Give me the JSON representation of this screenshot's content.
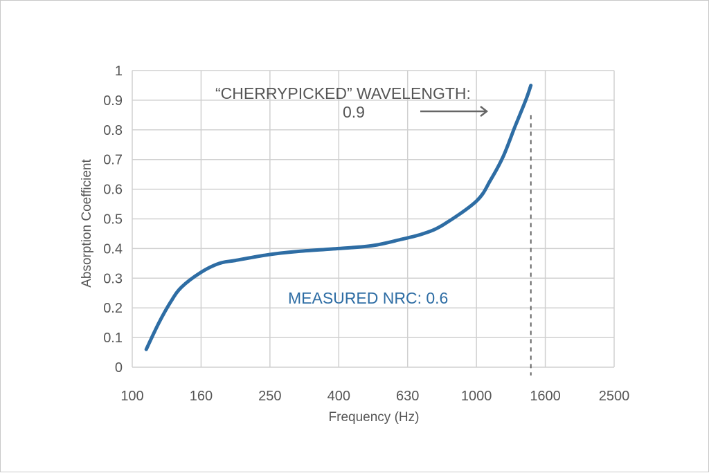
{
  "chart_data": {
    "type": "line",
    "xlabel": "Frequency (Hz)",
    "ylabel": "Absorption Coefficient",
    "categories": [
      "100",
      "160",
      "250",
      "400",
      "630",
      "1000",
      "1600",
      "2500"
    ],
    "yticks": [
      "0",
      "0.1",
      "0.2",
      "0.3",
      "0.4",
      "0.5",
      "0.6",
      "0.7",
      "0.8",
      "0.9",
      "1"
    ],
    "ylim": [
      0,
      1
    ],
    "grid": true,
    "series": [
      {
        "color": "#2e6da4",
        "x": [
          110,
          120,
          130,
          140,
          160,
          180,
          200,
          250,
          300,
          400,
          500,
          600,
          700,
          800,
          1000,
          1100,
          1200,
          1300,
          1400,
          1450
        ],
        "y": [
          0.06,
          0.15,
          0.22,
          0.27,
          0.32,
          0.35,
          0.36,
          0.38,
          0.39,
          0.4,
          0.41,
          0.43,
          0.45,
          0.48,
          0.56,
          0.63,
          0.71,
          0.81,
          0.9,
          0.95
        ]
      }
    ],
    "annotations": {
      "cherrypicked_line1": "“CHERRYPICKED” WAVELENGTH:",
      "cherrypicked_line2": "0.9",
      "measured_nrc": "MEASURED NRC: 0.6",
      "marker_frequency": 1450
    },
    "colors": {
      "curve": "#2e6da4",
      "grid": "#d0d0d0",
      "text": "#555555",
      "arrow": "#666666"
    }
  }
}
